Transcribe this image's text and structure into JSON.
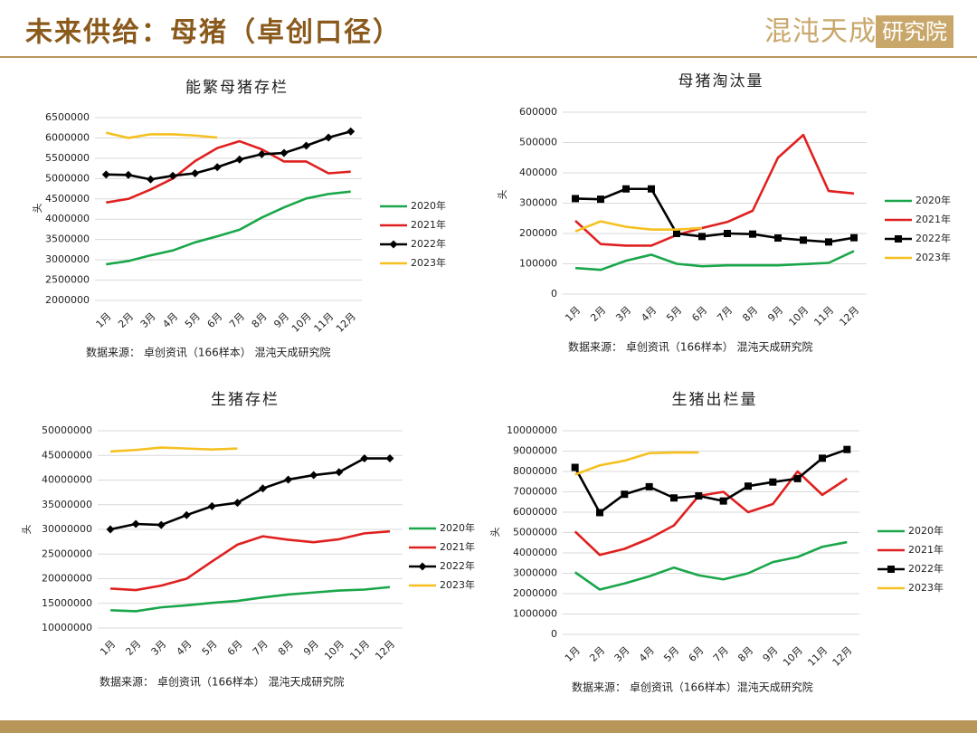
{
  "header": {
    "title": "未来供给：母猪（卓创口径）",
    "logo": "混沌天成",
    "logo_sub": "研究院"
  },
  "chart_data": [
    {
      "type": "line",
      "title": "能繁母猪存栏",
      "y_label": "头",
      "source": "数据来源： 卓创资讯（166样本） 混沌天成研究院",
      "categories": [
        "1月",
        "2月",
        "3月",
        "4月",
        "5月",
        "6月",
        "7月",
        "8月",
        "9月",
        "10月",
        "11月",
        "12月"
      ],
      "ylim": [
        2000000,
        6500000
      ],
      "yticks": [
        2000000,
        2500000,
        3000000,
        3500000,
        4000000,
        4500000,
        5000000,
        5500000,
        6000000,
        6500000
      ],
      "grid": true,
      "series": [
        {
          "name": "2020年",
          "color": "#1aa64a",
          "values": [
            2890000,
            2970000,
            3110000,
            3230000,
            3430000,
            3580000,
            3740000,
            4040000,
            4290000,
            4510000,
            4620000,
            4680000
          ]
        },
        {
          "name": "2021年",
          "color": "#e02020",
          "values": [
            4410000,
            4500000,
            4730000,
            5000000,
            5430000,
            5750000,
            5920000,
            5720000,
            5420000,
            5420000,
            5130000,
            5170000
          ]
        },
        {
          "name": "2022年",
          "color": "#000000",
          "marker": "diamond",
          "values": [
            5100000,
            5090000,
            4980000,
            5070000,
            5130000,
            5280000,
            5470000,
            5600000,
            5630000,
            5810000,
            6010000,
            6160000
          ]
        },
        {
          "name": "2023年",
          "color": "#f5c020",
          "values": [
            6130000,
            6000000,
            6090000,
            6090000,
            6060000,
            6010000,
            null,
            null,
            null,
            null,
            null,
            null
          ]
        }
      ]
    },
    {
      "type": "line",
      "title": "母猪淘汰量",
      "y_label": "头",
      "source": "数据来源： 卓创资讯（166样本） 混沌天成研究院",
      "categories": [
        "1月",
        "2月",
        "3月",
        "4月",
        "5月",
        "6月",
        "7月",
        "8月",
        "9月",
        "10月",
        "11月",
        "12月"
      ],
      "ylim": [
        0,
        600000
      ],
      "yticks": [
        0,
        100000,
        200000,
        300000,
        400000,
        500000,
        600000
      ],
      "grid": true,
      "series": [
        {
          "name": "2020年",
          "color": "#1aa64a",
          "values": [
            86000,
            80000,
            110000,
            130000,
            100000,
            92000,
            95000,
            95000,
            95000,
            99000,
            103000,
            142000
          ]
        },
        {
          "name": "2021年",
          "color": "#e02020",
          "values": [
            242000,
            165000,
            160000,
            160000,
            195000,
            218000,
            238000,
            275000,
            450000,
            525000,
            340000,
            332000
          ]
        },
        {
          "name": "2022年",
          "color": "#000000",
          "marker": "square",
          "values": [
            315000,
            313000,
            347000,
            347000,
            200000,
            190000,
            200000,
            198000,
            185000,
            178000,
            172000,
            186000
          ]
        },
        {
          "name": "2023年",
          "color": "#f5c020",
          "values": [
            207000,
            240000,
            222000,
            213000,
            213000,
            218000,
            null,
            null,
            null,
            null,
            null,
            null
          ]
        }
      ]
    },
    {
      "type": "line",
      "title": "生猪存栏",
      "y_label": "头",
      "source": "数据来源： 卓创资讯（166样本） 混沌天成研究院",
      "categories": [
        "1月",
        "2月",
        "3月",
        "4月",
        "5月",
        "6月",
        "7月",
        "8月",
        "9月",
        "10月",
        "11月",
        "12月"
      ],
      "ylim": [
        10000000,
        50000000
      ],
      "yticks": [
        10000000,
        15000000,
        20000000,
        25000000,
        30000000,
        35000000,
        40000000,
        45000000,
        50000000
      ],
      "grid": true,
      "series": [
        {
          "name": "2020年",
          "color": "#1aa64a",
          "values": [
            13600000,
            13400000,
            14200000,
            14600000,
            15100000,
            15500000,
            16200000,
            16800000,
            17200000,
            17600000,
            17800000,
            18300000
          ]
        },
        {
          "name": "2021年",
          "color": "#e02020",
          "values": [
            18000000,
            17700000,
            18600000,
            20000000,
            23500000,
            26900000,
            28600000,
            27900000,
            27400000,
            28000000,
            29200000,
            29600000
          ]
        },
        {
          "name": "2022年",
          "color": "#000000",
          "marker": "diamond",
          "values": [
            30000000,
            31100000,
            30900000,
            32900000,
            34700000,
            35400000,
            38300000,
            40100000,
            41000000,
            41600000,
            44400000,
            44400000
          ]
        },
        {
          "name": "2023年",
          "color": "#f5c020",
          "values": [
            45800000,
            46100000,
            46600000,
            46400000,
            46200000,
            46400000,
            null,
            null,
            null,
            null,
            null,
            null
          ]
        }
      ]
    },
    {
      "type": "line",
      "title": "生猪出栏量",
      "y_label": "头",
      "source": "数据来源： 卓创资讯（166样本）混沌天成研究院",
      "categories": [
        "1月",
        "2月",
        "3月",
        "4月",
        "5月",
        "6月",
        "7月",
        "8月",
        "9月",
        "10月",
        "11月",
        "12月"
      ],
      "ylim": [
        0,
        10000000
      ],
      "yticks": [
        0,
        1000000,
        2000000,
        3000000,
        4000000,
        5000000,
        6000000,
        7000000,
        8000000,
        9000000,
        10000000
      ],
      "grid": true,
      "series": [
        {
          "name": "2020年",
          "color": "#1aa64a",
          "values": [
            3050000,
            2200000,
            2500000,
            2850000,
            3280000,
            2900000,
            2700000,
            3000000,
            3550000,
            3800000,
            4300000,
            4530000
          ]
        },
        {
          "name": "2021年",
          "color": "#e02020",
          "values": [
            5050000,
            3900000,
            4200000,
            4700000,
            5350000,
            6800000,
            7000000,
            6000000,
            6400000,
            8000000,
            6850000,
            7650000
          ]
        },
        {
          "name": "2022年",
          "color": "#000000",
          "marker": "square",
          "values": [
            8200000,
            5980000,
            6880000,
            7250000,
            6700000,
            6800000,
            6550000,
            7280000,
            7480000,
            7650000,
            8650000,
            9080000
          ]
        },
        {
          "name": "2023年",
          "color": "#f5c020",
          "values": [
            7850000,
            8300000,
            8530000,
            8900000,
            8930000,
            8930000,
            null,
            null,
            null,
            null,
            null,
            null
          ]
        }
      ]
    }
  ]
}
